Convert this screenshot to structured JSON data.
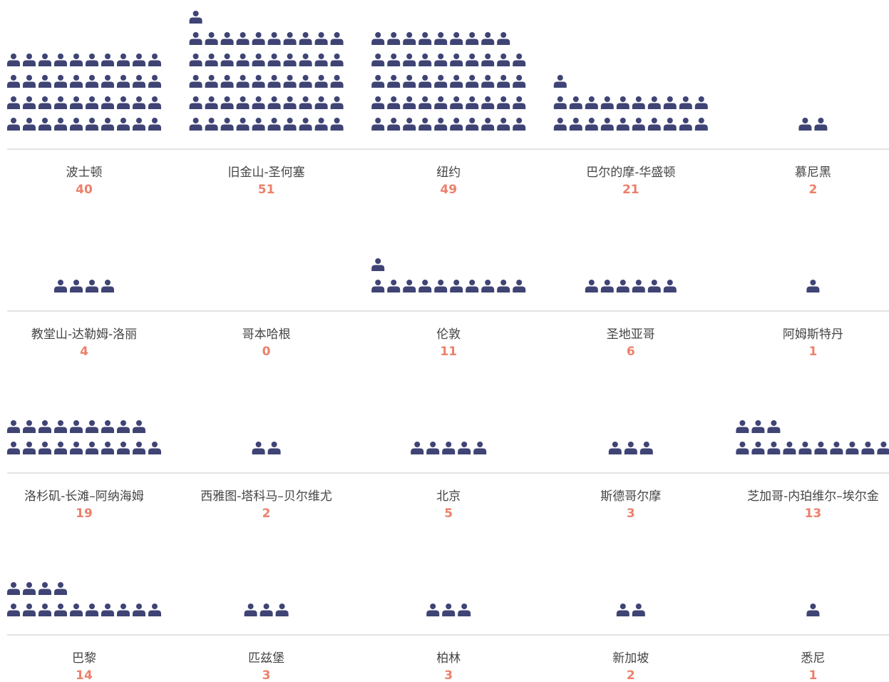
{
  "chart_data": {
    "type": "pictograph",
    "categories": [
      "波士顿",
      "旧金山-圣何塞",
      "纽约",
      "巴尔的摩-华盛顿",
      "慕尼黑",
      "教堂山-达勒姆-洛丽",
      "哥本哈根",
      "伦敦",
      "圣地亚哥",
      "阿姆斯特丹",
      "洛杉矶-长滩–阿纳海姆",
      "西雅图-塔科马–贝尔维尤",
      "北京",
      "斯德哥尔摩",
      "芝加哥-内珀维尔–埃尔金",
      "巴黎",
      "匹兹堡",
      "柏林",
      "新加坡",
      "悉尼"
    ],
    "values": [
      40,
      51,
      49,
      21,
      2,
      4,
      0,
      11,
      6,
      1,
      19,
      2,
      5,
      3,
      13,
      14,
      3,
      3,
      2,
      1
    ],
    "color": "#3f4475",
    "value_color": "#ec806b"
  }
}
